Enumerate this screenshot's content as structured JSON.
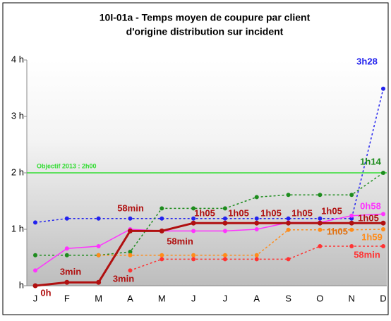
{
  "chart_data": {
    "type": "line",
    "title": [
      "10I-01a - Temps moyen de coupure par client",
      "d'origine distribution sur incident"
    ],
    "categories": [
      "J",
      "F",
      "M",
      "A",
      "M",
      "J",
      "J",
      "A",
      "S",
      "O",
      "N",
      "D"
    ],
    "ylim": [
      0,
      4
    ],
    "yticks": [
      {
        "value": 0,
        "label": "h"
      },
      {
        "value": 1,
        "label": "1 h"
      },
      {
        "value": 2,
        "label": "2 h"
      },
      {
        "value": 3,
        "label": "3 h"
      },
      {
        "value": 4,
        "label": "4 h"
      }
    ],
    "objective": {
      "value": 2,
      "label": "Objectif 2013  : 2h00",
      "color": "#33dd33"
    },
    "series": [
      {
        "color": "#2222ee",
        "width": 1.5,
        "dash": true,
        "values": [
          1.12,
          1.19,
          1.19,
          1.19,
          1.19,
          1.19,
          1.19,
          1.19,
          1.19,
          1.19,
          1.19,
          3.49
        ]
      },
      {
        "color": "#1e8c1e",
        "width": 1.5,
        "dash": true,
        "values": [
          0.54,
          0.54,
          0.54,
          0.6,
          1.37,
          1.37,
          1.37,
          1.57,
          1.61,
          1.61,
          1.61,
          2.0
        ]
      },
      {
        "color": "#ff33ff",
        "width": 1.5,
        "dash": false,
        "values": [
          0.27,
          0.66,
          0.7,
          1.0,
          0.97,
          0.97,
          0.97,
          1.0,
          1.12,
          1.12,
          1.24,
          1.27
        ]
      },
      {
        "color": "#ff8c1a",
        "width": 1.5,
        "dash": true,
        "values": [
          null,
          null,
          0.54,
          0.54,
          0.54,
          0.54,
          0.54,
          0.54,
          0.99,
          0.99,
          0.99,
          1.0
        ]
      },
      {
        "color": "#ff3333",
        "width": 1.5,
        "dash": true,
        "values": [
          null,
          null,
          null,
          0.27,
          0.47,
          0.47,
          0.47,
          0.47,
          0.47,
          0.7,
          0.7,
          0.7
        ]
      },
      {
        "color": "#b01010",
        "width": 3,
        "dash": false,
        "values": [
          0,
          0.06,
          0.06,
          0.97,
          0.97,
          1.11,
          1.11,
          1.11,
          1.11,
          1.11,
          1.11,
          1.11
        ]
      }
    ],
    "annotations": [
      {
        "text": "0h",
        "color": "#b01010"
      },
      {
        "text": "3min",
        "color": "#b01010"
      },
      {
        "text": "3min",
        "color": "#b01010"
      },
      {
        "text": "58min",
        "color": "#b01010"
      },
      {
        "text": "58min",
        "color": "#b01010"
      },
      {
        "text": "1h05",
        "color": "#b01010"
      },
      {
        "text": "1h05",
        "color": "#b01010"
      },
      {
        "text": "1h05",
        "color": "#b01010"
      },
      {
        "text": "1h05",
        "color": "#b01010"
      },
      {
        "text": "1h05",
        "color": "#b01010"
      },
      {
        "text": "1h05",
        "color": "#e07010"
      },
      {
        "text": "1h05",
        "color": "#b01010"
      },
      {
        "text": "0h58",
        "color": "#ff33ff"
      },
      {
        "text": "1h59",
        "color": "#ff8c1a"
      },
      {
        "text": "58min",
        "color": "#ff3333"
      },
      {
        "text": "3h28",
        "color": "#2222ee"
      },
      {
        "text": "1h14",
        "color": "#1e8c1e"
      }
    ]
  }
}
